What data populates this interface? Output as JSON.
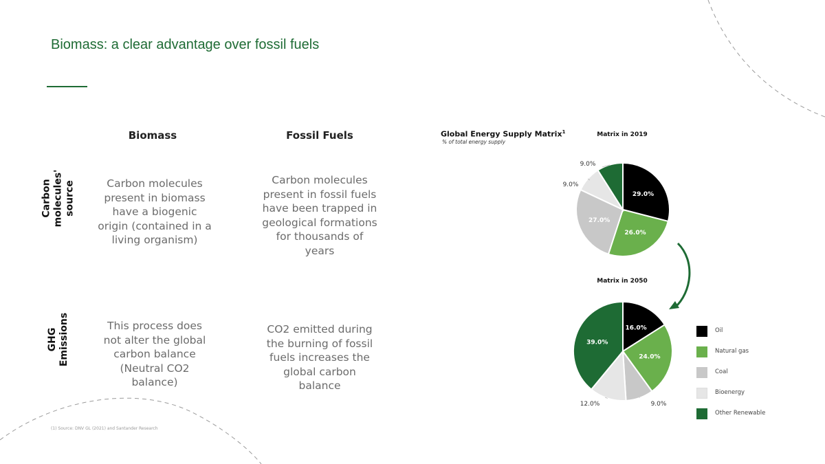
{
  "title": "Biomass: a clear advantage over fossil fuels",
  "columns": [
    "Biomass",
    "Fossil Fuels"
  ],
  "rows": [
    {
      "label_lines": [
        "Carbon",
        "molecules'",
        "source"
      ],
      "cells": [
        [
          "Carbon molecules",
          "present in biomass",
          "have a biogenic",
          "origin (contained in a",
          "living organism)"
        ],
        [
          "Carbon molecules",
          "present in fossil fuels",
          "have been trapped in",
          "geological formations",
          "for thousands of",
          "years"
        ]
      ]
    },
    {
      "label_lines": [
        "GHG",
        "Emissions"
      ],
      "cells": [
        [
          "This process does",
          "not alter the global",
          "carbon balance",
          "(Neutral CO2",
          "balance)"
        ],
        [
          "CO2 emitted during",
          "the burning of fossil",
          "fuels increases the",
          "global carbon",
          "balance"
        ]
      ]
    }
  ],
  "footnote": "(1) Source: DNV GL (2021) and Santander Research",
  "chart_data": {
    "type": "pie",
    "title": "Global Energy Supply Matrix",
    "title_sup": "1",
    "subtitle": "% of total energy supply",
    "legend_position": "right",
    "categories": [
      "Oil",
      "Natural gas",
      "Coal",
      "Bioenergy",
      "Other Renewable"
    ],
    "colors": [
      "#000000",
      "#6ab04c",
      "#c8c8c8",
      "#e6e6e6",
      "#1e6b34"
    ],
    "pies": [
      {
        "name": "Matrix in 2019",
        "values": [
          29.0,
          26.0,
          27.0,
          9.0,
          9.0
        ],
        "labels": [
          "29.0%",
          "26.0%",
          "27.0%",
          "9.0%",
          "9.0%"
        ]
      },
      {
        "name": "Matrix in 2050",
        "values": [
          16.0,
          24.0,
          9.0,
          12.0,
          39.0
        ],
        "labels": [
          "16.0%",
          "24.0%",
          "9.0%",
          "12.0%",
          "39.0%"
        ]
      }
    ]
  }
}
